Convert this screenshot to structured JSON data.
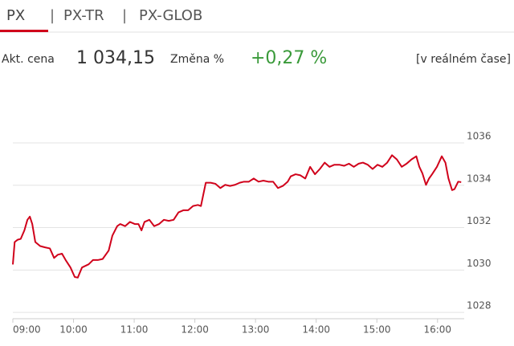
{
  "tabs": [
    "PX",
    "PX-TR",
    "PX-GLOB"
  ],
  "info": {
    "price_label": "Akt. cena",
    "price": "1 034,15",
    "change_label": "Změna %",
    "change": "+0,27 %",
    "mode": "[v reálném čase]"
  },
  "chart_data": {
    "type": "line",
    "x": [
      9.0,
      9.03,
      9.08,
      9.13,
      9.19,
      9.24,
      9.28,
      9.32,
      9.37,
      9.45,
      9.53,
      9.61,
      9.68,
      9.74,
      9.81,
      9.87,
      9.95,
      10.02,
      10.07,
      10.14,
      10.25,
      10.32,
      10.4,
      10.48,
      10.58,
      10.64,
      10.72,
      10.77,
      10.85,
      10.93,
      11.01,
      11.07,
      11.12,
      11.17,
      11.25,
      11.33,
      11.41,
      11.49,
      11.57,
      11.65,
      11.73,
      11.81,
      11.89,
      11.97,
      12.05,
      12.1,
      12.14,
      12.18,
      12.26,
      12.34,
      12.42,
      12.5,
      12.58,
      12.66,
      12.74,
      12.81,
      12.89,
      12.97,
      13.05,
      13.13,
      13.21,
      13.29,
      13.37,
      13.45,
      13.53,
      13.58,
      13.66,
      13.74,
      13.82,
      13.9,
      13.98,
      14.06,
      14.14,
      14.22,
      14.3,
      14.38,
      14.46,
      14.54,
      14.62,
      14.7,
      14.77,
      14.85,
      14.93,
      15.01,
      15.09,
      15.17,
      15.25,
      15.33,
      15.41,
      15.49,
      15.57,
      15.65,
      15.7,
      15.75,
      15.81,
      15.86,
      15.91,
      15.99,
      16.07,
      16.13,
      16.18,
      16.24,
      16.28,
      16.34,
      16.39
    ],
    "series": [
      {
        "name": "PX",
        "color": "#d0021b",
        "values": [
          1030.26,
          1031.32,
          1031.43,
          1031.47,
          1031.87,
          1032.37,
          1032.52,
          1032.17,
          1031.32,
          1031.13,
          1031.07,
          1031.02,
          1030.57,
          1030.72,
          1030.77,
          1030.47,
          1030.12,
          1029.67,
          1029.64,
          1030.12,
          1030.27,
          1030.47,
          1030.47,
          1030.52,
          1030.92,
          1031.62,
          1032.07,
          1032.17,
          1032.07,
          1032.27,
          1032.17,
          1032.17,
          1031.87,
          1032.27,
          1032.37,
          1032.07,
          1032.17,
          1032.37,
          1032.32,
          1032.37,
          1032.72,
          1032.82,
          1032.82,
          1033.02,
          1033.07,
          1033.02,
          1033.57,
          1034.12,
          1034.12,
          1034.07,
          1033.87,
          1034.02,
          1033.97,
          1034.02,
          1034.12,
          1034.17,
          1034.17,
          1034.32,
          1034.17,
          1034.22,
          1034.17,
          1034.17,
          1033.87,
          1033.97,
          1034.17,
          1034.42,
          1034.52,
          1034.47,
          1034.32,
          1034.87,
          1034.52,
          1034.77,
          1035.07,
          1034.87,
          1034.97,
          1034.97,
          1034.92,
          1035.02,
          1034.87,
          1035.02,
          1035.07,
          1034.97,
          1034.77,
          1034.97,
          1034.87,
          1035.07,
          1035.42,
          1035.22,
          1034.87,
          1035.02,
          1035.22,
          1035.37,
          1034.87,
          1034.57,
          1034.02,
          1034.32,
          1034.52,
          1034.87,
          1035.37,
          1035.07,
          1034.32,
          1033.77,
          1033.82,
          1034.17,
          1034.15
        ]
      }
    ],
    "xlim": [
      9,
      16.4
    ],
    "xticks": [
      {
        "value": 9,
        "label": "09:00"
      },
      {
        "value": 10,
        "label": "10:00"
      },
      {
        "value": 11,
        "label": "11:00"
      },
      {
        "value": 12,
        "label": "12:00"
      },
      {
        "value": 13,
        "label": "13:00"
      },
      {
        "value": 14,
        "label": "14:00"
      },
      {
        "value": 15,
        "label": "15:00"
      },
      {
        "value": 16,
        "label": "16:00"
      }
    ],
    "ylim": [
      1027.7,
      1038.2
    ],
    "yticks": [
      1028,
      1030,
      1032,
      1034,
      1036
    ],
    "grid": true
  }
}
